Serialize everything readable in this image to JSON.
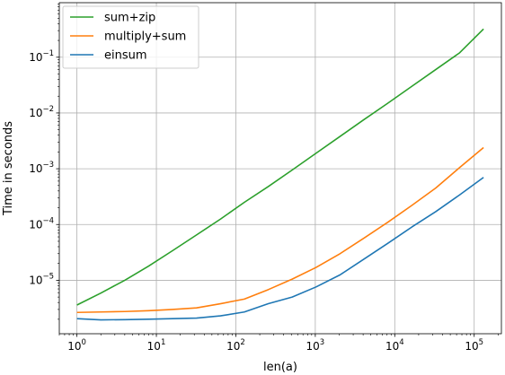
{
  "chart_data": {
    "type": "line",
    "title": "",
    "xlabel": "len(a)",
    "ylabel": "Time in seconds",
    "xscale": "log",
    "yscale": "log",
    "xlim": [
      0.6,
      220000
    ],
    "ylim": [
      1.1e-06,
      0.95
    ],
    "grid": true,
    "legend_position": "top-left",
    "xticks": [
      {
        "value": 1,
        "base": "10",
        "exp": "0"
      },
      {
        "value": 10,
        "base": "10",
        "exp": "1"
      },
      {
        "value": 100,
        "base": "10",
        "exp": "2"
      },
      {
        "value": 1000,
        "base": "10",
        "exp": "3"
      },
      {
        "value": 10000,
        "base": "10",
        "exp": "4"
      },
      {
        "value": 100000,
        "base": "10",
        "exp": "5"
      }
    ],
    "yticks": [
      {
        "value": 1e-05,
        "base": "10",
        "exp": "−5"
      },
      {
        "value": 0.0001,
        "base": "10",
        "exp": "−4"
      },
      {
        "value": 0.001,
        "base": "10",
        "exp": "−3"
      },
      {
        "value": 0.01,
        "base": "10",
        "exp": "−2"
      },
      {
        "value": 0.1,
        "base": "10",
        "exp": "−1"
      }
    ],
    "series": [
      {
        "name": "sum+zip",
        "color": "#2ca02c",
        "x": [
          1,
          2,
          4,
          8,
          16,
          32,
          64,
          128,
          256,
          512,
          1024,
          2048,
          4096,
          8192,
          16384,
          32768,
          65536,
          131072
        ],
        "y": [
          3.6e-06,
          5.9e-06,
          1e-05,
          1.8e-05,
          3.4e-05,
          6.5e-05,
          0.000125,
          0.00025,
          0.00048,
          0.00095,
          0.0019,
          0.0038,
          0.0076,
          0.015,
          0.03,
          0.06,
          0.12,
          0.32
        ]
      },
      {
        "name": "multiply+sum",
        "color": "#ff7f0e",
        "x": [
          1,
          2,
          4,
          8,
          16,
          32,
          64,
          128,
          256,
          512,
          1024,
          2048,
          4096,
          8192,
          16384,
          32768,
          65536,
          131072
        ],
        "y": [
          2.65e-06,
          2.7e-06,
          2.75e-06,
          2.85e-06,
          3e-06,
          3.2e-06,
          3.8e-06,
          4.6e-06,
          6.8e-06,
          1.05e-05,
          1.7e-05,
          3e-05,
          5.7e-05,
          0.00011,
          0.00022,
          0.00045,
          0.00105,
          0.0024
        ]
      },
      {
        "name": "einsum",
        "color": "#1f77b4",
        "x": [
          1,
          2,
          4,
          8,
          16,
          32,
          64,
          128,
          256,
          512,
          1024,
          2048,
          4096,
          8192,
          16384,
          32768,
          65536,
          131072
        ],
        "y": [
          2.05e-06,
          1.95e-06,
          1.97e-06,
          2e-06,
          2.05e-06,
          2.1e-06,
          2.3e-06,
          2.7e-06,
          3.8e-06,
          5e-06,
          7.6e-06,
          1.25e-05,
          2.4e-05,
          4.6e-05,
          9e-05,
          0.00017,
          0.00034,
          0.0007
        ]
      }
    ]
  }
}
